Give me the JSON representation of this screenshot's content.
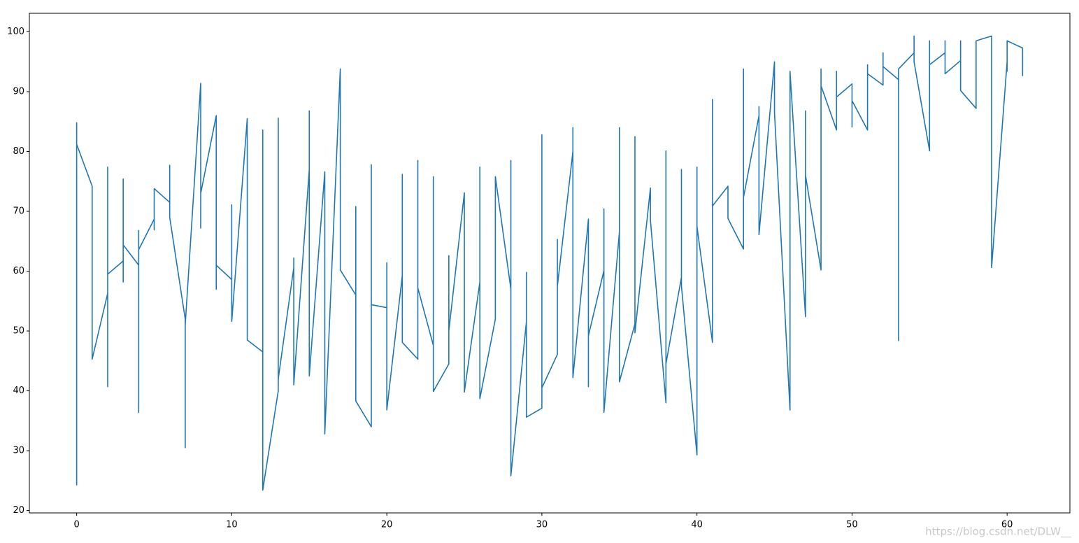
{
  "chart_data": {
    "type": "line",
    "x": [
      0,
      0,
      0,
      1,
      1,
      2,
      2,
      2,
      2,
      3,
      3,
      3,
      3,
      4,
      4,
      4,
      4,
      5,
      5,
      5,
      6,
      6,
      6,
      7,
      7,
      7,
      8,
      8,
      8,
      9,
      9,
      9,
      10,
      10,
      10,
      11,
      11,
      12,
      12,
      12,
      13,
      13,
      13,
      14,
      14,
      14,
      15,
      15,
      15,
      16,
      16,
      17,
      17,
      18,
      18,
      18,
      19,
      19,
      19,
      20,
      20,
      20,
      21,
      21,
      21,
      22,
      22,
      22,
      23,
      23,
      23,
      24,
      24,
      24,
      25,
      25,
      26,
      26,
      26,
      27,
      27,
      28,
      28,
      28,
      29,
      29,
      29,
      30,
      30,
      30,
      31,
      31,
      31,
      32,
      32,
      32,
      33,
      33,
      33,
      34,
      34,
      34,
      35,
      35,
      35,
      36,
      36,
      36,
      37,
      37,
      38,
      38,
      38,
      39,
      39,
      39,
      40,
      40,
      40,
      41,
      41,
      41,
      42,
      42,
      43,
      43,
      43,
      44,
      44,
      44,
      45,
      45,
      46,
      46,
      47,
      47,
      47,
      48,
      48,
      48,
      49,
      49,
      49,
      50,
      50,
      50,
      51,
      51,
      51,
      52,
      52,
      52,
      53,
      53,
      53,
      54,
      54,
      54,
      55,
      55,
      55,
      56,
      56,
      56,
      57,
      57,
      57,
      58,
      58,
      59,
      59,
      60,
      60,
      60,
      61,
      61
    ],
    "series": [
      {
        "color": "#1f77b4",
        "values": [
          24.2,
          84.8,
          81.2,
          74.2,
          45.3,
          56.3,
          40.7,
          77.4,
          59.5,
          61.7,
          58.2,
          75.4,
          64.4,
          61.0,
          36.4,
          66.8,
          63.6,
          68.7,
          66.9,
          73.8,
          71.5,
          77.7,
          69.0,
          52.0,
          30.5,
          51.0,
          91.4,
          67.2,
          73.0,
          86.0,
          57.0,
          61.0,
          58.6,
          71.1,
          51.6,
          85.5,
          48.5,
          46.5,
          83.6,
          23.4,
          40.0,
          85.6,
          42.0,
          60.6,
          62.2,
          41.0,
          77.0,
          86.8,
          42.5,
          76.6,
          32.8,
          93.8,
          60.2,
          56.0,
          70.8,
          38.3,
          34.0,
          77.8,
          54.4,
          53.9,
          61.4,
          36.8,
          59.3,
          76.2,
          48.1,
          45.3,
          78.5,
          57.2,
          47.6,
          75.8,
          39.9,
          44.5,
          62.6,
          50.0,
          73.1,
          39.8,
          58.2,
          77.4,
          38.7,
          52.0,
          75.8,
          57.0,
          78.5,
          25.8,
          51.5,
          59.8,
          35.6,
          37.1,
          82.8,
          40.5,
          46.1,
          65.3,
          57.5,
          80.0,
          84.0,
          42.2,
          68.7,
          40.7,
          49.2,
          60.1,
          70.4,
          36.4,
          66.6,
          84.0,
          41.5,
          51.2,
          82.5,
          49.7,
          73.9,
          68.5,
          38.0,
          80.1,
          44.5,
          59.0,
          77.0,
          57.5,
          29.3,
          77.4,
          67.5,
          48.1,
          88.7,
          70.9,
          74.2,
          68.8,
          63.7,
          93.8,
          72.3,
          86.0,
          87.5,
          66.1,
          95.0,
          86.5,
          36.8,
          93.4,
          52.4,
          86.8,
          76.0,
          60.2,
          93.8,
          91.0,
          83.6,
          93.4,
          89.1,
          91.3,
          84.1,
          88.5,
          83.6,
          94.5,
          93.0,
          91.1,
          96.5,
          94.2,
          92.0,
          48.4,
          93.8,
          96.5,
          99.3,
          95.0,
          80.1,
          98.5,
          94.5,
          96.5,
          98.5,
          93.0,
          95.2,
          98.5,
          90.2,
          87.2,
          98.5,
          99.3,
          60.6,
          95.0,
          93.4,
          98.5,
          97.3,
          92.6
        ]
      }
    ],
    "xlim": [
      -3.05,
      64.05
    ],
    "xticks": [
      0,
      10,
      20,
      30,
      40,
      50,
      60
    ],
    "ylim": [
      19.6,
      103.1
    ],
    "yticks": [
      20,
      30,
      40,
      50,
      60,
      70,
      80,
      90,
      100
    ],
    "watermark": "https://blog.csdn.net/DLW__"
  }
}
